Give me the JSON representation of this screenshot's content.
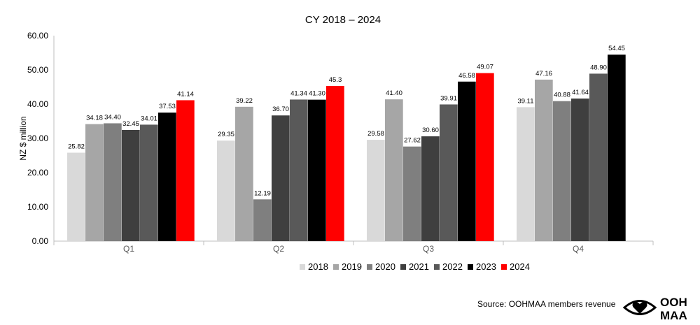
{
  "chart_data": {
    "type": "bar",
    "title": "CY 2018 – 2024",
    "xlabel": "",
    "ylabel": "NZ $ million",
    "ylim": [
      0,
      60
    ],
    "yticks": [
      "0.00",
      "10.00",
      "20.00",
      "30.00",
      "40.00",
      "50.00",
      "60.00"
    ],
    "categories": [
      "Q1",
      "Q2",
      "Q3",
      "Q4"
    ],
    "legend_position": "bottom",
    "grid": false,
    "series": [
      {
        "name": "2018",
        "color": "#d9d9d9",
        "values": [
          25.82,
          29.35,
          29.58,
          39.11
        ],
        "labels": [
          "25.82",
          "29.35",
          "29.58",
          "39.11"
        ]
      },
      {
        "name": "2019",
        "color": "#a6a6a6",
        "values": [
          34.18,
          39.22,
          41.4,
          47.16
        ],
        "labels": [
          "34.18",
          "39.22",
          "41.40",
          "47.16"
        ]
      },
      {
        "name": "2020",
        "color": "#7f7f7f",
        "values": [
          34.4,
          12.19,
          27.62,
          40.88
        ],
        "labels": [
          "34.40",
          "12.19",
          "27.62",
          "40.88"
        ]
      },
      {
        "name": "2021",
        "color": "#3f3f3f",
        "values": [
          32.45,
          36.7,
          30.6,
          41.64
        ],
        "labels": [
          "32.45",
          "36.70",
          "30.60",
          "41.64"
        ]
      },
      {
        "name": "2022",
        "color": "#595959",
        "values": [
          34.01,
          41.34,
          39.91,
          48.9
        ],
        "labels": [
          "34.01",
          "41.34",
          "39.91",
          "48.90"
        ]
      },
      {
        "name": "2023",
        "color": "#000000",
        "values": [
          37.53,
          41.3,
          46.58,
          54.45
        ],
        "labels": [
          "37.53",
          "41.30",
          "46.58",
          "54.45"
        ]
      },
      {
        "name": "2024",
        "color": "#ff0000",
        "values": [
          41.14,
          45.3,
          49.07,
          null
        ],
        "labels": [
          "41.14",
          "45.3",
          "49.07",
          null
        ]
      }
    ]
  },
  "footer": {
    "source": "Source: OOHMAA members revenue",
    "logo_text_top": "OOH",
    "logo_text_bottom": "MAA"
  }
}
